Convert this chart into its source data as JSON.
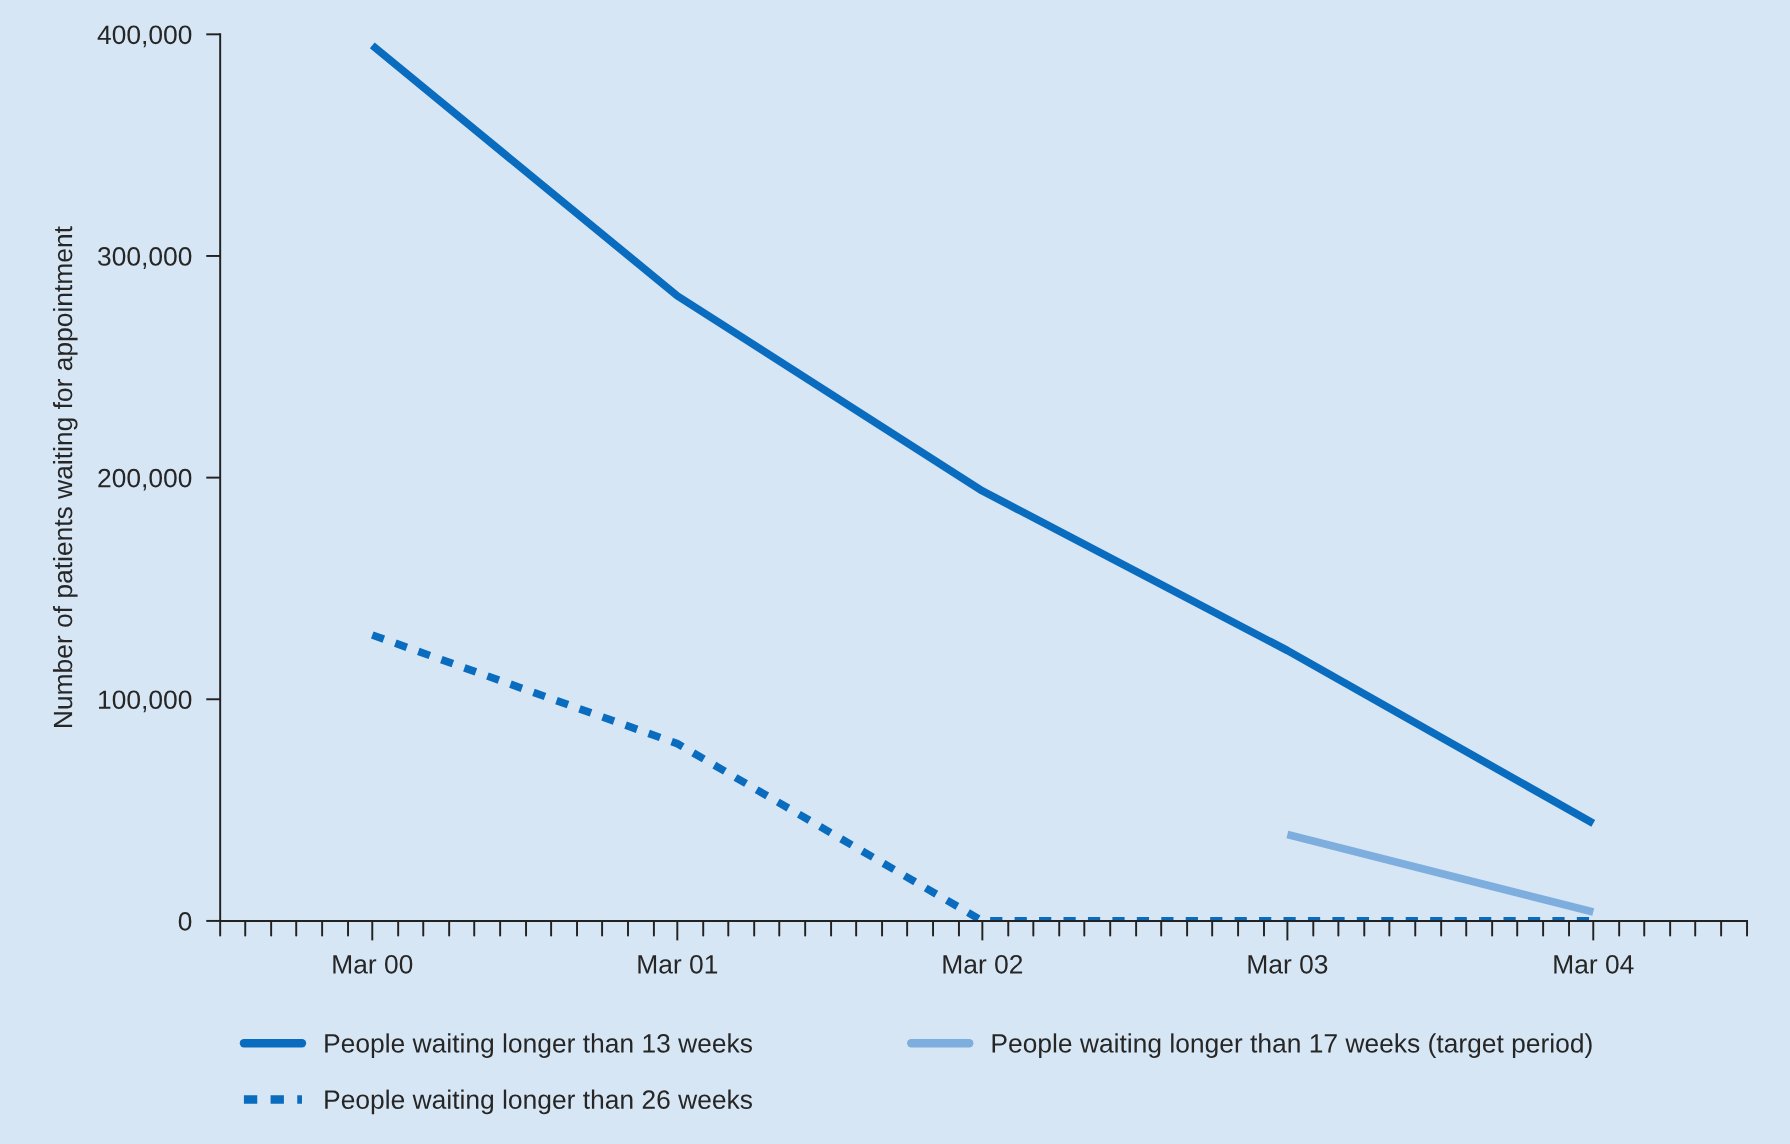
{
  "chart_data": {
    "type": "line",
    "ylabel": "Number of patients waiting for appointment",
    "x": [
      "2000-03",
      "2001-03",
      "2002-03",
      "2003-03",
      "2004-03"
    ],
    "series": [
      {
        "name": "People waiting longer than 13 weeks",
        "color": "#0a6cbf",
        "line_style": "solid",
        "values": [
          395000,
          282000,
          194000,
          122000,
          44000
        ]
      },
      {
        "name": "People waiting longer than 26 weeks",
        "color": "#0a6cbf",
        "line_style": "dashed",
        "values": [
          129000,
          80000,
          0,
          0,
          0
        ]
      },
      {
        "name": "People waiting longer than 17 weeks (target period)",
        "color": "#7eaede",
        "line_style": "solid",
        "x": [
          "2003-03",
          "2004-03"
        ],
        "values": [
          39000,
          4000
        ]
      }
    ],
    "xlim": [
      "1999-09",
      "2004-09"
    ],
    "xticks": [
      {
        "value": "1999-09",
        "label": null
      },
      {
        "value": "1999-10",
        "label": null
      },
      {
        "value": "1999-11",
        "label": null
      },
      {
        "value": "1999-12",
        "label": null
      },
      {
        "value": "2000-01",
        "label": null
      },
      {
        "value": "2000-02",
        "label": null
      },
      {
        "value": "2000-03",
        "label": "Mar 00"
      },
      {
        "value": "2000-04",
        "label": null
      },
      {
        "value": "2000-05",
        "label": null
      },
      {
        "value": "2000-06",
        "label": null
      },
      {
        "value": "2000-07",
        "label": null
      },
      {
        "value": "2000-08",
        "label": null
      },
      {
        "value": "2000-09",
        "label": null
      },
      {
        "value": "2000-10",
        "label": null
      },
      {
        "value": "2000-11",
        "label": null
      },
      {
        "value": "2000-12",
        "label": null
      },
      {
        "value": "2001-01",
        "label": null
      },
      {
        "value": "2001-02",
        "label": null
      },
      {
        "value": "2001-03",
        "label": "Mar 01"
      },
      {
        "value": "2001-04",
        "label": null
      },
      {
        "value": "2001-05",
        "label": null
      },
      {
        "value": "2001-06",
        "label": null
      },
      {
        "value": "2001-07",
        "label": null
      },
      {
        "value": "2001-08",
        "label": null
      },
      {
        "value": "2001-09",
        "label": null
      },
      {
        "value": "2001-10",
        "label": null
      },
      {
        "value": "2001-11",
        "label": null
      },
      {
        "value": "2001-12",
        "label": null
      },
      {
        "value": "2002-01",
        "label": null
      },
      {
        "value": "2002-02",
        "label": null
      },
      {
        "value": "2002-03",
        "label": "Mar 02"
      },
      {
        "value": "2002-04",
        "label": null
      },
      {
        "value": "2002-05",
        "label": null
      },
      {
        "value": "2002-06",
        "label": null
      },
      {
        "value": "2002-07",
        "label": null
      },
      {
        "value": "2002-08",
        "label": null
      },
      {
        "value": "2002-09",
        "label": null
      },
      {
        "value": "2002-10",
        "label": null
      },
      {
        "value": "2002-11",
        "label": null
      },
      {
        "value": "2002-12",
        "label": null
      },
      {
        "value": "2003-01",
        "label": null
      },
      {
        "value": "2003-02",
        "label": null
      },
      {
        "value": "2003-03",
        "label": "Mar 03"
      },
      {
        "value": "2003-04",
        "label": null
      },
      {
        "value": "2003-05",
        "label": null
      },
      {
        "value": "2003-06",
        "label": null
      },
      {
        "value": "2003-07",
        "label": null
      },
      {
        "value": "2003-08",
        "label": null
      },
      {
        "value": "2003-09",
        "label": null
      },
      {
        "value": "2003-10",
        "label": null
      },
      {
        "value": "2003-11",
        "label": null
      },
      {
        "value": "2003-12",
        "label": null
      },
      {
        "value": "2004-01",
        "label": null
      },
      {
        "value": "2004-02",
        "label": null
      },
      {
        "value": "2004-03",
        "label": "Mar 04"
      },
      {
        "value": "2004-04",
        "label": null
      },
      {
        "value": "2004-05",
        "label": null
      },
      {
        "value": "2004-06",
        "label": null
      },
      {
        "value": "2004-07",
        "label": null
      },
      {
        "value": "2004-08",
        "label": null
      },
      {
        "value": "2004-09",
        "label": null
      }
    ],
    "ylim": [
      0,
      400000
    ],
    "yticks": [
      {
        "value": 0,
        "label": "0"
      },
      {
        "value": 100000,
        "label": "100,000"
      },
      {
        "value": 200000,
        "label": "200,000"
      },
      {
        "value": 300000,
        "label": "300,000"
      },
      {
        "value": 400000,
        "label": "400,000"
      }
    ],
    "grid": false,
    "legend": "bottom"
  }
}
